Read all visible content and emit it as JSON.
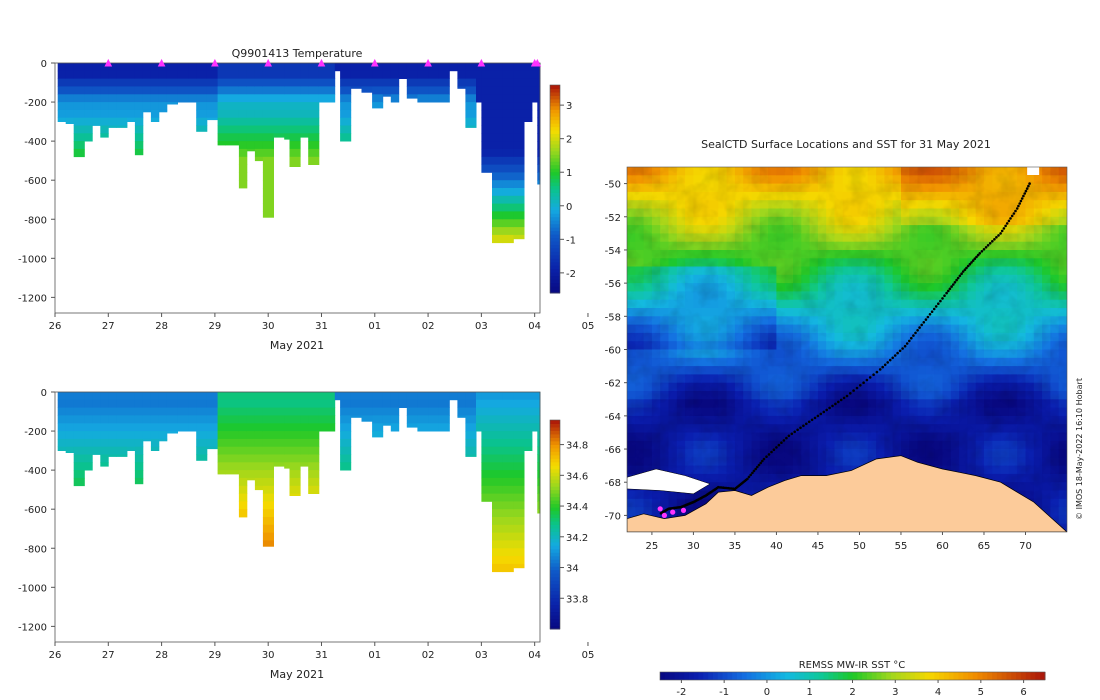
{
  "chart_data": [
    {
      "type": "heatmap",
      "title": "Q9901413  Temperature",
      "xlabel": "May 2021",
      "ylabel": "",
      "x_tick_labels": [
        "26",
        "27",
        "28",
        "29",
        "30",
        "31",
        "01",
        "02",
        "03",
        "04",
        "05"
      ],
      "x_range_days": [
        26,
        35.1
      ],
      "ylim": [
        -1280,
        0
      ],
      "y_ticks": [
        0,
        -200,
        -400,
        -600,
        -800,
        -1000,
        -1200
      ],
      "y_tick_labels": [
        "0",
        "-200",
        "-400",
        "-600",
        "-800",
        "-1000",
        "-1200"
      ],
      "colorbar": {
        "range": [
          -2.6,
          3.6
        ],
        "ticks": [
          3,
          2,
          1,
          0,
          -1,
          -2
        ],
        "tick_labels": [
          "3",
          "2",
          "1",
          "0",
          "-1",
          "-2"
        ]
      },
      "profile_markers_day": [
        27,
        28,
        29,
        30,
        31,
        32,
        33,
        34,
        35,
        35.05
      ],
      "profiles": [
        [
          26.05,
          -300
        ],
        [
          26.2,
          -310
        ],
        [
          26.35,
          -480
        ],
        [
          26.55,
          -400
        ],
        [
          26.7,
          -320
        ],
        [
          26.85,
          -380
        ],
        [
          27.0,
          -330
        ],
        [
          27.15,
          -330
        ],
        [
          27.35,
          -300
        ],
        [
          27.5,
          -470
        ],
        [
          27.65,
          -250
        ],
        [
          27.8,
          -300
        ],
        [
          27.95,
          -250
        ],
        [
          28.1,
          -210
        ],
        [
          28.3,
          -200
        ],
        [
          28.5,
          -200
        ],
        [
          28.65,
          -350
        ],
        [
          28.85,
          -290
        ],
        [
          29.05,
          -420
        ],
        [
          29.2,
          -420
        ],
        [
          29.45,
          -640
        ],
        [
          29.6,
          -450
        ],
        [
          29.75,
          -500
        ],
        [
          29.9,
          -790
        ],
        [
          30.1,
          -380
        ],
        [
          30.3,
          -390
        ],
        [
          30.4,
          -530
        ],
        [
          30.6,
          -380
        ],
        [
          30.75,
          -520
        ],
        [
          30.95,
          -200
        ],
        [
          31.25,
          -40
        ],
        [
          31.35,
          -400
        ],
        [
          31.55,
          -130
        ],
        [
          31.75,
          -150
        ],
        [
          31.95,
          -230
        ],
        [
          32.15,
          -170
        ],
        [
          32.3,
          -200
        ],
        [
          32.45,
          -80
        ],
        [
          32.6,
          -180
        ],
        [
          32.8,
          -200
        ],
        [
          33.0,
          -200
        ],
        [
          33.2,
          -200
        ],
        [
          33.4,
          -40
        ],
        [
          33.55,
          -130
        ],
        [
          33.7,
          -330
        ],
        [
          33.9,
          -200
        ],
        [
          34.0,
          -560
        ],
        [
          34.2,
          -920
        ],
        [
          34.4,
          -920
        ],
        [
          34.6,
          -900
        ],
        [
          34.8,
          -300
        ],
        [
          34.95,
          -200
        ],
        [
          35.05,
          -620
        ]
      ]
    },
    {
      "type": "heatmap",
      "title": "",
      "xlabel": "May 2021",
      "ylabel": "",
      "x_tick_labels": [
        "26",
        "27",
        "28",
        "29",
        "30",
        "31",
        "01",
        "02",
        "03",
        "04",
        "05"
      ],
      "x_range_days": [
        26,
        35.1
      ],
      "ylim": [
        -1280,
        0
      ],
      "y_ticks": [
        0,
        -200,
        -400,
        -600,
        -800,
        -1000,
        -1200
      ],
      "y_tick_labels": [
        "0",
        "-200",
        "-400",
        "-600",
        "-800",
        "-1000",
        "-1200"
      ],
      "colorbar": {
        "range": [
          33.6,
          34.96
        ],
        "ticks": [
          34.8,
          34.6,
          34.4,
          34.2,
          34.0,
          33.8
        ],
        "tick_labels": [
          "34.8",
          "34.6",
          "34.4",
          "34.2",
          "34",
          "33.8"
        ]
      }
    },
    {
      "type": "heatmap",
      "title": "SealCTD Surface Locations and SST for 31 May 2021",
      "xlabel": "",
      "ylabel": "",
      "xlim": [
        22,
        75
      ],
      "ylim": [
        -71,
        -49
      ],
      "x_ticks": [
        25,
        30,
        35,
        40,
        45,
        50,
        55,
        60,
        65,
        70
      ],
      "x_tick_labels": [
        "25",
        "30",
        "35",
        "40",
        "45",
        "50",
        "55",
        "60",
        "65",
        "70"
      ],
      "y_ticks": [
        -50,
        -52,
        -54,
        -56,
        -58,
        -60,
        -62,
        -64,
        -66,
        -68,
        -70
      ],
      "y_tick_labels": [
        "-50",
        "-52",
        "-54",
        "-56",
        "-58",
        "-60",
        "-62",
        "-64",
        "-66",
        "-68",
        "-70"
      ],
      "seal_track": [
        [
          70.5,
          -50
        ],
        [
          69,
          -51.5
        ],
        [
          67,
          -53
        ],
        [
          64.5,
          -54.2
        ],
        [
          62.5,
          -55.3
        ],
        [
          60.5,
          -56.6
        ],
        [
          58,
          -58.2
        ],
        [
          55.5,
          -59.8
        ],
        [
          52.5,
          -61.2
        ],
        [
          48.5,
          -62.8
        ],
        [
          45,
          -64
        ],
        [
          41.5,
          -65.2
        ],
        [
          38.5,
          -66.6
        ],
        [
          36.5,
          -67.8
        ],
        [
          35,
          -68.4
        ],
        [
          33,
          -68.3
        ],
        [
          31.5,
          -68.8
        ],
        [
          30,
          -69.2
        ],
        [
          28.5,
          -69.5
        ],
        [
          27,
          -69.6
        ],
        [
          26,
          -69.9
        ]
      ],
      "recent_locations": [
        [
          26,
          -69.6
        ],
        [
          26.5,
          -70
        ],
        [
          27.5,
          -69.8
        ],
        [
          28.8,
          -69.7
        ]
      ],
      "colorbar": {
        "title": "REMSS MW-IR SST °C",
        "range": [
          -2.5,
          6.5
        ],
        "ticks": [
          -2,
          -1,
          0,
          1,
          2,
          3,
          4,
          5,
          6
        ],
        "tick_labels": [
          "-2",
          "-1",
          "0",
          "1",
          "2",
          "3",
          "4",
          "5",
          "6"
        ]
      },
      "credit": "© IMOS 18-May-2022 16:10 Hobart"
    }
  ],
  "colors": {
    "land": "#fccb9a",
    "track": "#000000",
    "marker": "#ff33ff",
    "sea_ice": "#ffffff"
  }
}
